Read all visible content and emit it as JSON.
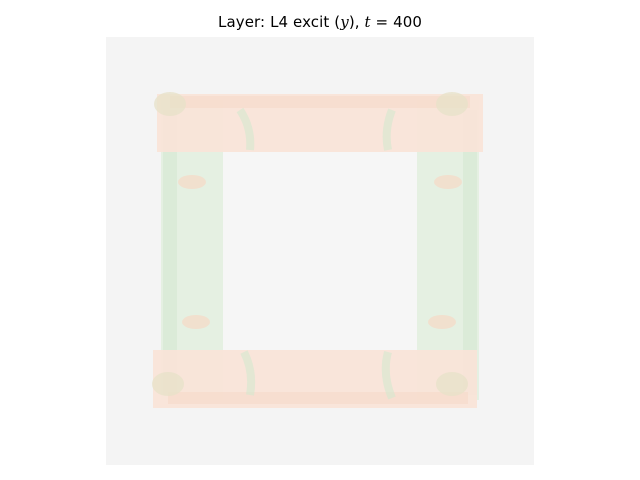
{
  "chart_data": {
    "type": "heatmap",
    "title": {
      "prefix": "Layer: L4 excit (",
      "var": "y",
      "middle": "), ",
      "time_var": "t",
      "equals": " = ",
      "time_value": "400"
    },
    "xlabel": "",
    "ylabel": "",
    "axes_visible": false,
    "grid": false,
    "legend": "none",
    "colormap": {
      "background": "#f4f4f4",
      "inner_field": "#f6f6f6",
      "warm_bands": "#f9e4d8",
      "warm_bands_strong": "#f6d8c6",
      "cool_bands": "#e3f0e0",
      "cool_bands_strong": "#d4e8cf",
      "corner_mix": "#e7e2c8"
    },
    "structure": "square ring: warm horizontal bands top and bottom, cool vertical bands left and right, mixed blotches at corners, near-neutral center"
  }
}
